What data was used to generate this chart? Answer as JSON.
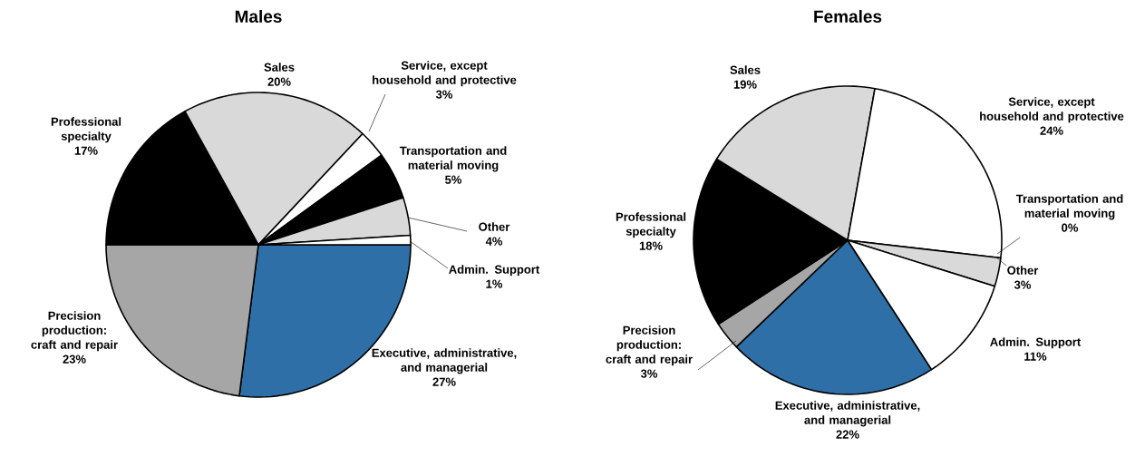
{
  "chart_data": [
    {
      "type": "pie",
      "title": "Males",
      "categories": [
        "Executive, administrative, and managerial",
        "Precision production: craft and repair",
        "Professional specialty",
        "Sales",
        "Service, except household and protective",
        "Transportation and material moving",
        "Other",
        "Admin. Support"
      ],
      "values": [
        27,
        23,
        17,
        20,
        3,
        5,
        4,
        1
      ],
      "value_labels": [
        "27%",
        "23%",
        "17%",
        "20%",
        "3%",
        "5%",
        "4%",
        "1%"
      ],
      "colors": [
        "#2e6fa7",
        "#a6a6a6",
        "#000000",
        "#d9d9d9",
        "#ffffff",
        "#000000",
        "#d9d9d9",
        "#ffffff"
      ]
    },
    {
      "type": "pie",
      "title": "Females",
      "categories": [
        "Executive, administrative, and managerial",
        "Precision production: craft and repair",
        "Professional specialty",
        "Sales",
        "Service, except household and protective",
        "Transportation and material moving",
        "Other",
        "Admin. Support"
      ],
      "values": [
        22,
        3,
        18,
        19,
        24,
        0,
        3,
        11
      ],
      "value_labels": [
        "22%",
        "3%",
        "18%",
        "19%",
        "24%",
        "0%",
        "3%",
        "11%"
      ],
      "colors": [
        "#2e6fa7",
        "#a6a6a6",
        "#000000",
        "#d9d9d9",
        "#ffffff",
        "#ffffff",
        "#d9d9d9",
        "#ffffff"
      ]
    }
  ]
}
